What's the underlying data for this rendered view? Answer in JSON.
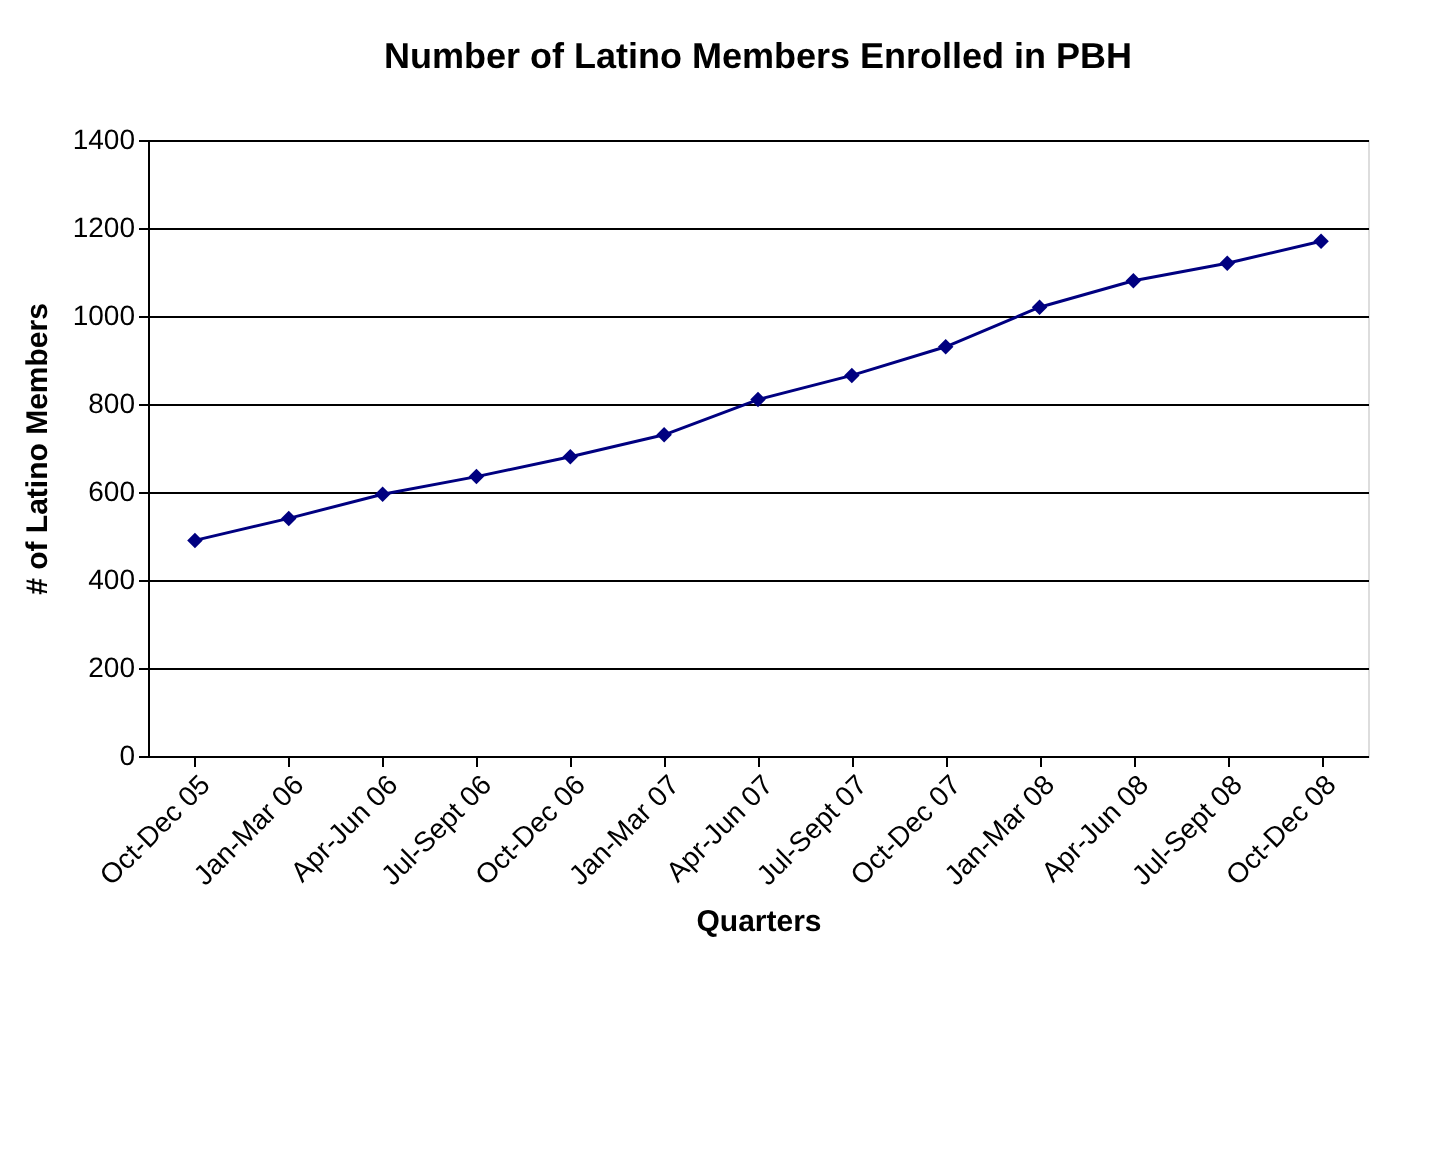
{
  "chart_data": {
    "type": "line",
    "title": "Number of Latino Members Enrolled in PBH",
    "xlabel": "Quarters",
    "ylabel": "# of Latino Members",
    "categories": [
      "Oct-Dec 05",
      "Jan-Mar 06",
      "Apr-Jun 06",
      "Jul-Sept 06",
      "Oct-Dec 06",
      "Jan-Mar 07",
      "Apr-Jun 07",
      "Jul-Sept 07",
      "Oct-Dec 07",
      "Jan-Mar 08",
      "Apr-Jun 08",
      "Jul-Sept 08",
      "Oct-Dec 08"
    ],
    "series": [
      {
        "color": "#000080",
        "values": [
          490,
          540,
          595,
          635,
          680,
          730,
          810,
          865,
          930,
          1020,
          1080,
          1120,
          1170
        ]
      }
    ],
    "ylim": [
      0,
      1400
    ],
    "yticks": [
      0,
      200,
      400,
      600,
      800,
      1000,
      1200,
      1400
    ],
    "grid": "y",
    "marker": "diamond",
    "line_style": "solid"
  }
}
